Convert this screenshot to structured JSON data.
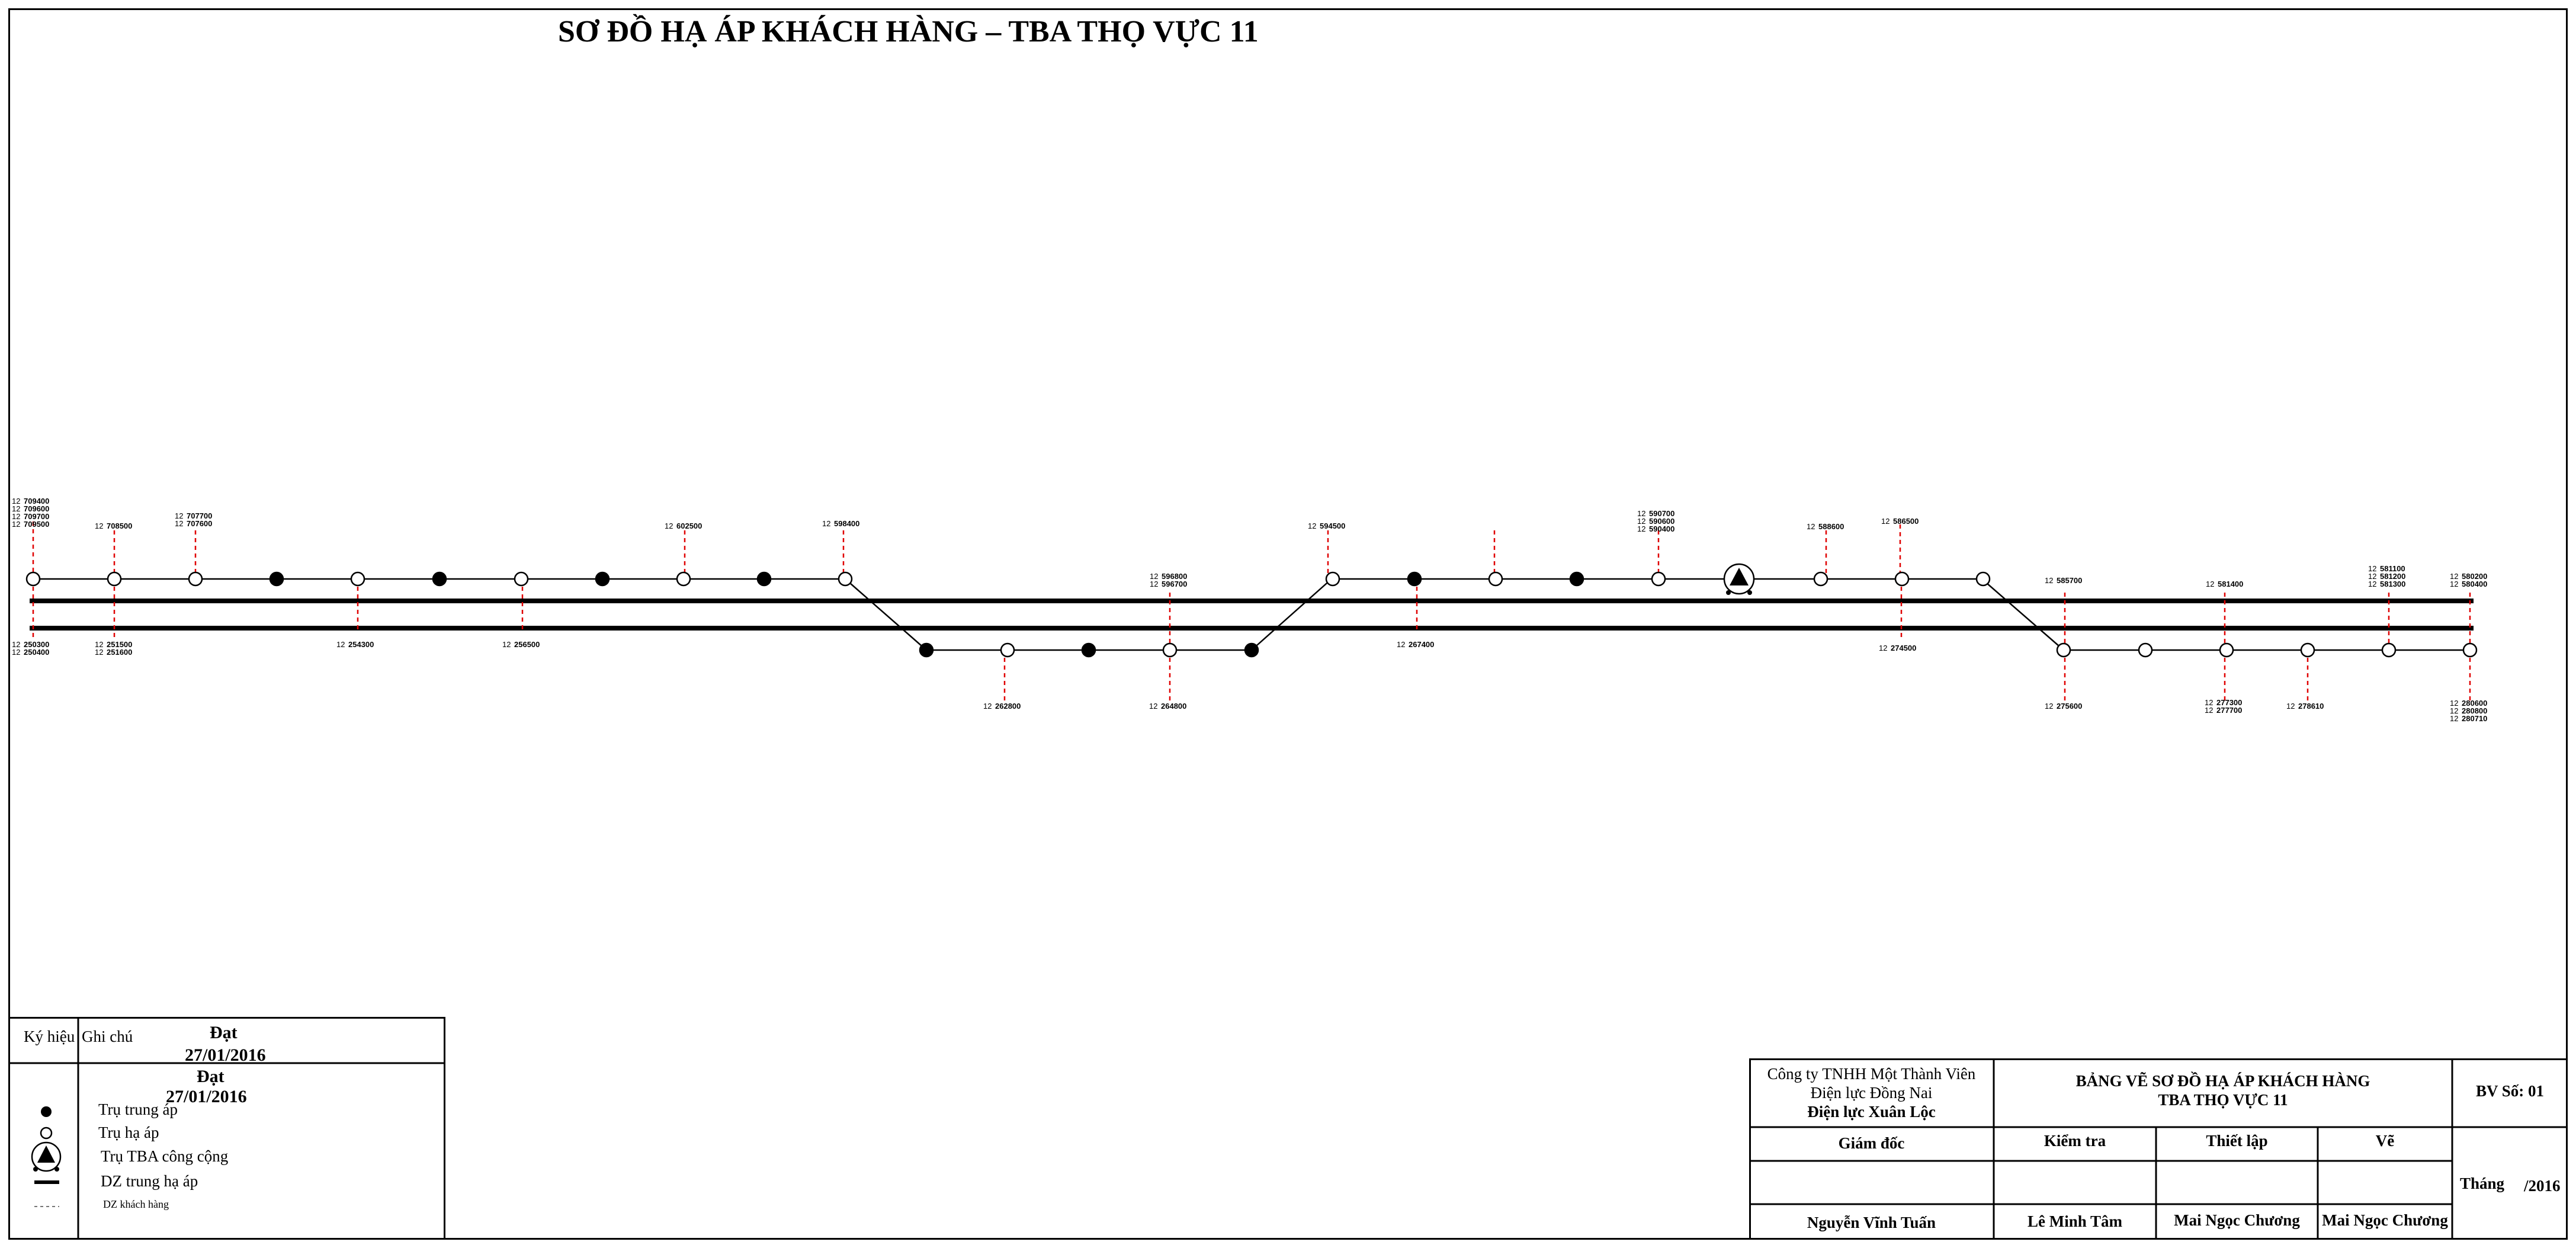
{
  "title": "SƠ ĐỒ HẠ ÁP KHÁCH HÀNG – TBA THỌ VỰC 11",
  "diagram": {
    "upper_top_labels": [
      {
        "prefix": "12",
        "codes": [
          "709400",
          "709600",
          "709700",
          "709500"
        ]
      },
      {
        "prefix": "12",
        "codes": [
          "708500"
        ]
      },
      {
        "prefix": "12",
        "codes": [
          "707700",
          "707600"
        ]
      },
      {
        "prefix": "12",
        "codes": [
          "602500"
        ]
      },
      {
        "prefix": "12",
        "codes": [
          "598400"
        ]
      },
      {
        "prefix": "12",
        "codes": [
          "594500"
        ]
      },
      {
        "prefix": "12",
        "codes": [
          "590700",
          "590600",
          "590400"
        ]
      },
      {
        "prefix": "12",
        "codes": [
          "588600"
        ]
      },
      {
        "prefix": "12",
        "codes": [
          "586500"
        ]
      }
    ],
    "upper_bottom_labels": [
      {
        "prefix": "12",
        "codes": [
          "250300",
          "250400"
        ]
      },
      {
        "prefix": "12",
        "codes": [
          "251500",
          "251600"
        ]
      },
      {
        "prefix": "12",
        "codes": [
          "254300"
        ]
      },
      {
        "prefix": "12",
        "codes": [
          "256500"
        ]
      },
      {
        "prefix": "12",
        "codes": [
          "267400"
        ]
      },
      {
        "prefix": "12",
        "codes": [
          "274500"
        ]
      }
    ],
    "lower_top_labels": [
      {
        "prefix": "12",
        "codes": [
          "596800",
          "596700"
        ]
      },
      {
        "prefix": "12",
        "codes": [
          "585700"
        ]
      },
      {
        "prefix": "12",
        "codes": [
          "581400"
        ]
      },
      {
        "prefix": "12",
        "codes": [
          "581100",
          "581200",
          "581300"
        ]
      },
      {
        "prefix": "12",
        "codes": [
          "580200",
          "580400"
        ]
      }
    ],
    "lower_bottom_labels": [
      {
        "prefix": "12",
        "codes": [
          "262800"
        ]
      },
      {
        "prefix": "12",
        "codes": [
          "264800"
        ]
      },
      {
        "prefix": "12",
        "codes": [
          "275600"
        ]
      },
      {
        "prefix": "12",
        "codes": [
          "277300",
          "277700"
        ]
      },
      {
        "prefix": "12",
        "codes": [
          "278610"
        ]
      },
      {
        "prefix": "12",
        "codes": [
          "280600",
          "280800",
          "280710"
        ]
      }
    ]
  },
  "legend": {
    "col_symbol": "Ký hiệu",
    "col_note": "Ghi chú",
    "stamp_status": "Đạt",
    "stamp_date": "27/01/2016",
    "items": [
      {
        "icon": "filled-circle-icon",
        "label": "Trụ trung áp"
      },
      {
        "icon": "open-circle-icon",
        "label": "Trụ hạ áp"
      },
      {
        "icon": "transformer-icon",
        "label": "Trụ TBA công cộng"
      },
      {
        "icon": "thick-line-icon",
        "label": "DZ trung hạ áp"
      },
      {
        "icon": "dashed-line-icon",
        "label": "DZ khách hàng"
      }
    ]
  },
  "titleblock": {
    "company_line1": "Công ty TNHH Một Thành Viên",
    "company_line2": "Điện lực Đồng Nai",
    "company_line3": "Điện lực Xuân Lộc",
    "drawing_title_line1": "BẢNG VẼ SƠ ĐỒ HẠ ÁP KHÁCH HÀNG",
    "drawing_title_line2": "TBA THỌ VỰC 11",
    "sheet_no": "BV Số: 01",
    "roles": [
      "Giám đốc",
      "Kiểm tra",
      "Thiết lập",
      "Vẽ"
    ],
    "names": [
      "Nguyễn Vĩnh Tuấn",
      "Lê Minh Tâm",
      "Mai Ngọc Chương",
      "Mai Ngọc Chương"
    ],
    "month_label": "Tháng",
    "year_label": "/2016"
  }
}
